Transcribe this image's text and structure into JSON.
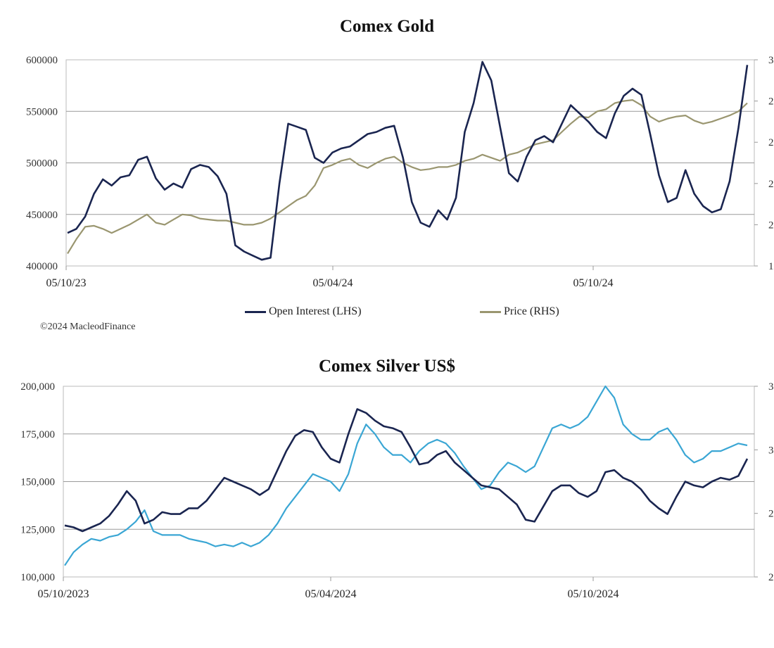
{
  "colors": {
    "navy": "#1a2550",
    "khaki": "#9a9670",
    "lightblue": "#3aa6d4",
    "grid": "#9a9a9a"
  },
  "chart_data": [
    {
      "type": "line",
      "title": "Comex Gold",
      "x_ticks": [
        "05/10/23",
        "05/04/24",
        "05/10/24"
      ],
      "y_left_ticks": [
        "600000",
        "550000",
        "500000",
        "450000",
        "400000"
      ],
      "y_right_ticks": [
        "3",
        "2",
        "2",
        "2",
        "2",
        "1"
      ],
      "ylim_left": [
        400000,
        600000
      ],
      "legend": [
        "Open Interest (LHS)",
        "Price (RHS)"
      ],
      "credit": "©2024 MacleodFinance",
      "series": [
        {
          "name": "Open Interest (LHS)",
          "axis": "left",
          "values": [
            432000,
            436000,
            448000,
            470000,
            484000,
            478000,
            486000,
            488000,
            503000,
            506000,
            485000,
            474000,
            480000,
            476000,
            494000,
            498000,
            496000,
            487000,
            470000,
            420000,
            414000,
            410000,
            406000,
            408000,
            480000,
            538000,
            535000,
            532000,
            505000,
            500000,
            510000,
            514000,
            516000,
            522000,
            528000,
            530000,
            534000,
            536000,
            505000,
            462000,
            442000,
            438000,
            454000,
            445000,
            466000,
            530000,
            558000,
            598000,
            580000,
            535000,
            490000,
            482000,
            506000,
            522000,
            526000,
            520000,
            538000,
            556000,
            548000,
            540000,
            530000,
            524000,
            548000,
            565000,
            572000,
            566000,
            528000,
            488000,
            462000,
            466000,
            493000,
            470000,
            458000,
            452000,
            455000,
            482000,
            534000,
            595000
          ]
        },
        {
          "name": "Price (RHS)",
          "axis": "left_scale_equivalent",
          "values": [
            412000,
            426000,
            438000,
            439000,
            436000,
            432000,
            436000,
            440000,
            445000,
            450000,
            442000,
            440000,
            445000,
            450000,
            449000,
            446000,
            445000,
            444000,
            444000,
            442000,
            440000,
            440000,
            442000,
            446000,
            452000,
            458000,
            464000,
            468000,
            478000,
            495000,
            498000,
            502000,
            504000,
            498000,
            495000,
            500000,
            504000,
            506000,
            500000,
            496000,
            493000,
            494000,
            496000,
            496000,
            498000,
            502000,
            504000,
            508000,
            505000,
            502000,
            508000,
            510000,
            514000,
            518000,
            520000,
            522000,
            530000,
            538000,
            545000,
            544000,
            550000,
            552000,
            558000,
            560000,
            561000,
            556000,
            545000,
            540000,
            543000,
            545000,
            546000,
            541000,
            538000,
            540000,
            543000,
            546000,
            550000,
            558000
          ]
        }
      ]
    },
    {
      "type": "line",
      "title": "Comex Silver US$",
      "x_ticks": [
        "05/10/2023",
        "05/04/2024",
        "05/10/2024"
      ],
      "y_left_ticks": [
        "200,000",
        "175,000",
        "150,000",
        "125,000",
        "100,000"
      ],
      "y_right_ticks": [
        "3",
        "3",
        "2",
        "2"
      ],
      "ylim_left": [
        100000,
        200000
      ],
      "series": [
        {
          "axis": "left",
          "values": [
            127000,
            126000,
            124000,
            126000,
            128000,
            132000,
            138000,
            145000,
            140000,
            128000,
            130000,
            134000,
            133000,
            133000,
            136000,
            136000,
            140000,
            146000,
            152000,
            150000,
            148000,
            146000,
            143000,
            146000,
            156000,
            166000,
            174000,
            177000,
            176000,
            168000,
            162000,
            160000,
            175000,
            188000,
            186000,
            182000,
            179000,
            178000,
            176000,
            168000,
            159000,
            160000,
            164000,
            166000,
            160000,
            156000,
            152000,
            148000,
            147000,
            146000,
            142000,
            138000,
            130000,
            129000,
            137000,
            145000,
            148000,
            148000,
            144000,
            142000,
            145000,
            155000,
            156000,
            152000,
            150000,
            146000,
            140000,
            136000,
            133000,
            142000,
            150000,
            148000,
            147000,
            150000,
            152000,
            151000,
            153000,
            162000
          ]
        },
        {
          "axis": "left_scale_equivalent",
          "values": [
            106000,
            113000,
            117000,
            120000,
            119000,
            121000,
            122000,
            125000,
            129000,
            135000,
            124000,
            122000,
            122000,
            122000,
            120000,
            119000,
            118000,
            116000,
            117000,
            116000,
            118000,
            116000,
            118000,
            122000,
            128000,
            136000,
            142000,
            148000,
            154000,
            152000,
            150000,
            145000,
            154000,
            170000,
            180000,
            175000,
            168000,
            164000,
            164000,
            160000,
            166000,
            170000,
            172000,
            170000,
            165000,
            158000,
            152000,
            146000,
            148000,
            155000,
            160000,
            158000,
            155000,
            158000,
            168000,
            178000,
            180000,
            178000,
            180000,
            184000,
            192000,
            200000,
            194000,
            180000,
            175000,
            172000,
            172000,
            176000,
            178000,
            172000,
            164000,
            160000,
            162000,
            166000,
            166000,
            168000,
            170000,
            169000
          ]
        }
      ]
    }
  ]
}
